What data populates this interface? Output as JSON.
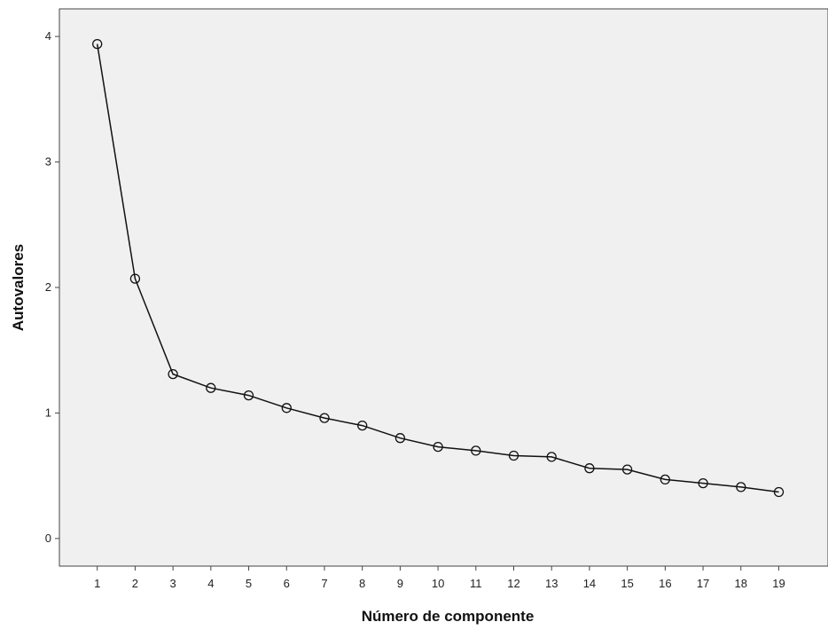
{
  "chart_data": {
    "type": "line",
    "title": "",
    "xlabel": "Número de componente",
    "ylabel": "Autovalores",
    "x": [
      1,
      2,
      3,
      4,
      5,
      6,
      7,
      8,
      9,
      10,
      11,
      12,
      13,
      14,
      15,
      16,
      17,
      18,
      19
    ],
    "x_tick_labels": [
      "1",
      "2",
      "3",
      "4",
      "5",
      "6",
      "7",
      "8",
      "9",
      "10",
      "11",
      "12",
      "13",
      "14",
      "15",
      "16",
      "17",
      "18",
      "19"
    ],
    "y_ticks": [
      0,
      1,
      2,
      3,
      4
    ],
    "y_tick_labels": [
      "0",
      "1",
      "2",
      "3",
      "4"
    ],
    "ylim": [
      -0.22,
      4.22
    ],
    "xlim": [
      0.0,
      20.3
    ],
    "grid": false,
    "marker": "open-circle",
    "series": [
      {
        "values": [
          3.94,
          2.07,
          1.31,
          1.2,
          1.14,
          1.04,
          0.96,
          0.9,
          0.8,
          0.73,
          0.7,
          0.66,
          0.65,
          0.56,
          0.55,
          0.47,
          0.44,
          0.41,
          0.37
        ]
      }
    ],
    "colors": {
      "line": "#111111",
      "plot_background": "#f0f0f0",
      "frame": "#444444"
    }
  }
}
